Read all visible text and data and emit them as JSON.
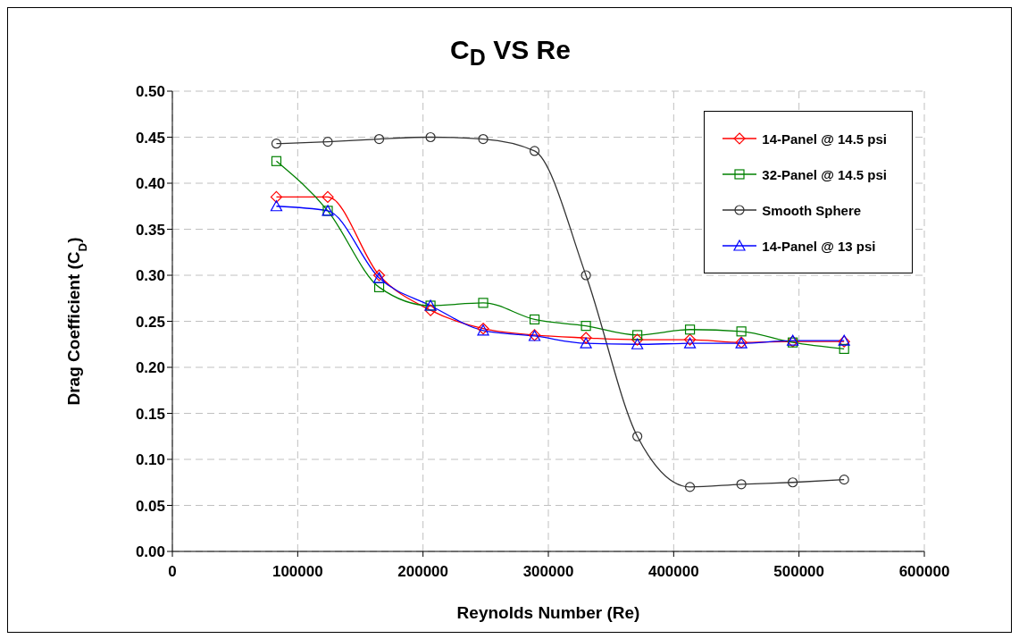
{
  "chart_data": {
    "type": "line",
    "title": "C$_{D}$ VS Re",
    "xlabel": "Reynolds Number (Re)",
    "ylabel": "Drag Coefficient (C$_{D}$)",
    "x": [
      83000,
      124000,
      165000,
      206000,
      248000,
      289000,
      330000,
      371000,
      413000,
      454000,
      495000,
      536000
    ],
    "series": [
      {
        "name": "14-Panel @ 14.5 psi",
        "color": "#ff0000",
        "marker": "diamond",
        "values": [
          0.385,
          0.385,
          0.3,
          0.262,
          0.242,
          0.235,
          0.232,
          0.23,
          0.23,
          0.227,
          0.228,
          0.228
        ]
      },
      {
        "name": "32-Panel @ 14.5 psi",
        "color": "#008000",
        "marker": "square",
        "values": [
          0.424,
          0.37,
          0.287,
          0.267,
          0.27,
          0.252,
          0.245,
          0.235,
          0.241,
          0.239,
          0.227,
          0.22
        ]
      },
      {
        "name": "Smooth Sphere",
        "color": "#333333",
        "marker": "circle",
        "values": [
          0.443,
          0.445,
          0.448,
          0.45,
          0.448,
          0.435,
          0.3,
          0.125,
          0.07,
          0.073,
          0.075,
          0.078
        ]
      },
      {
        "name": "14-Panel @ 13 psi",
        "color": "#0000ff",
        "marker": "triangle",
        "values": [
          0.375,
          0.37,
          0.297,
          0.267,
          0.24,
          0.234,
          0.226,
          0.225,
          0.226,
          0.226,
          0.229,
          0.229
        ]
      }
    ],
    "xlim": [
      0,
      600000
    ],
    "xticks": [
      0,
      100000,
      200000,
      300000,
      400000,
      500000,
      600000
    ],
    "ylim": [
      0,
      0.5
    ],
    "yticks": [
      {
        "value": 0,
        "label": "0.00"
      },
      {
        "value": 0.05,
        "label": "0.05"
      },
      {
        "value": 0.1,
        "label": "0.10"
      },
      {
        "value": 0.15,
        "label": "0.15"
      },
      {
        "value": 0.2,
        "label": "0.20"
      },
      {
        "value": 0.25,
        "label": "0.25"
      },
      {
        "value": 0.3,
        "label": "0.30"
      },
      {
        "value": 0.35,
        "label": "0.35"
      },
      {
        "value": 0.4,
        "label": "0.40"
      },
      {
        "value": 0.45,
        "label": "0.45"
      },
      {
        "value": 0.5,
        "label": "0.50"
      }
    ],
    "grid": true,
    "legend": "top right",
    "line_style": "solid"
  }
}
